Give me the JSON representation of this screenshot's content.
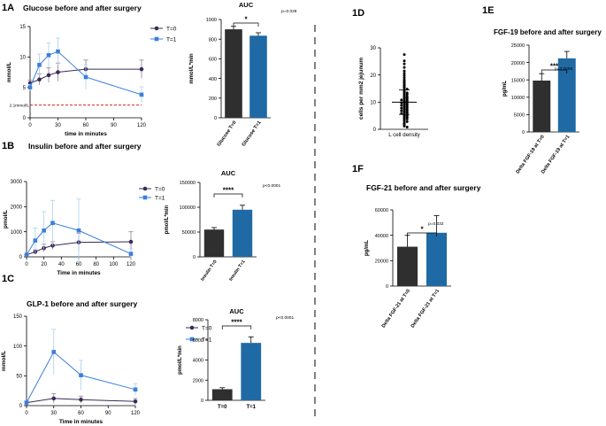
{
  "colors": {
    "t0": "#3b2b57",
    "t1": "#3a7fdc",
    "bar_dark": "#2f2f2f",
    "bar_blue": "#1f6aa5",
    "ref_line": "#e0221a",
    "err_light": "#a9d0f0"
  },
  "panels": {
    "a": {
      "tag": "1A",
      "title": "Glucose before and after surgery"
    },
    "b": {
      "tag": "1B",
      "title": "Insulin before and after surgery"
    },
    "c": {
      "tag": "1C",
      "title": "GLP-1 before and after surgery"
    },
    "d": {
      "tag": "1D"
    },
    "e": {
      "tag": "1E",
      "title": "FGF-19 before and after surgery"
    },
    "f": {
      "tag": "1F",
      "title": "FGF-21 before and after surgery"
    }
  },
  "chart_data": [
    {
      "id": "a-line",
      "type": "line",
      "title": "Glucose before and after surgery",
      "xlabel": "time in minutes",
      "ylabel": "mmol/L",
      "xlim": [
        0,
        120
      ],
      "ylim": [
        0,
        15
      ],
      "xticks": [
        0,
        30,
        60,
        90,
        120
      ],
      "yticks": [
        0,
        5,
        10,
        15
      ],
      "reference_line": {
        "y": 2.1,
        "label": "2.1mmol/L"
      },
      "legend_position": "top-right",
      "series": [
        {
          "name": "T=0",
          "x": [
            0,
            10,
            20,
            30,
            60,
            120
          ],
          "y": [
            5.7,
            6.3,
            7.0,
            7.5,
            8.0,
            8.0
          ],
          "err": [
            0.5,
            0.9,
            1.2,
            1.5,
            1.5,
            1.5
          ]
        },
        {
          "name": "T=1",
          "x": [
            0,
            10,
            20,
            30,
            60,
            120
          ],
          "y": [
            5.0,
            8.7,
            10.3,
            10.9,
            6.7,
            3.8
          ],
          "err": [
            0.5,
            1.8,
            2.0,
            2.2,
            2.0,
            1.3
          ]
        }
      ]
    },
    {
      "id": "a-bar",
      "type": "bar",
      "title": "AUC",
      "ylabel": "mmol/L*min",
      "categories": [
        "Glucose T=0",
        "Glucose T=1"
      ],
      "values": [
        900,
        835
      ],
      "err": [
        30,
        30
      ],
      "ylim": [
        0,
        1000
      ],
      "yticks": [
        0,
        200,
        400,
        600,
        800,
        1000
      ],
      "significance": {
        "stars": "*",
        "p": "p=0.028"
      }
    },
    {
      "id": "b-line",
      "type": "line",
      "title": "Insulin before and after surgery",
      "xlabel": "Time in minutes",
      "ylabel": "pmol/L",
      "xlim": [
        0,
        120
      ],
      "ylim": [
        0,
        3000
      ],
      "xticks": [
        0,
        20,
        40,
        60,
        80,
        100,
        120
      ],
      "yticks": [
        0,
        1000,
        2000,
        3000
      ],
      "legend_position": "top-right",
      "series": [
        {
          "name": "T=0",
          "x": [
            0,
            10,
            20,
            30,
            60,
            120
          ],
          "y": [
            80,
            200,
            350,
            450,
            580,
            600
          ],
          "err": [
            20,
            80,
            150,
            150,
            350,
            400
          ]
        },
        {
          "name": "T=1",
          "x": [
            0,
            10,
            20,
            30,
            60,
            120
          ],
          "y": [
            80,
            650,
            1050,
            1350,
            1050,
            120
          ],
          "err": [
            30,
            500,
            750,
            900,
            1250,
            200
          ]
        }
      ]
    },
    {
      "id": "b-bar",
      "type": "bar",
      "title": "AUC",
      "ylabel": "pmol/L*min",
      "categories": [
        "Insulin T=0",
        "Insulin T=1"
      ],
      "values": [
        55000,
        95000
      ],
      "err": [
        4000,
        9000
      ],
      "ylim": [
        0,
        150000
      ],
      "yticks": [
        0,
        50000,
        100000,
        150000
      ],
      "significance": {
        "stars": "****",
        "p": "p<0.0001"
      }
    },
    {
      "id": "c-line",
      "type": "line",
      "title": "GLP-1 before and after surgery",
      "xlabel": "Time in minutes",
      "ylabel": "mmol/L",
      "xlim": [
        0,
        120
      ],
      "ylim": [
        0,
        150
      ],
      "xticks": [
        0,
        30,
        60,
        90,
        120
      ],
      "yticks": [
        0,
        50,
        100,
        150
      ],
      "legend_position": "top-right",
      "series": [
        {
          "name": "T=0",
          "x": [
            0,
            30,
            60,
            120
          ],
          "y": [
            5,
            12,
            10,
            7
          ],
          "err": [
            2,
            8,
            6,
            5
          ]
        },
        {
          "name": "T=1",
          "x": [
            0,
            30,
            60,
            120
          ],
          "y": [
            5,
            90,
            51,
            27
          ],
          "err": [
            3,
            38,
            25,
            10
          ]
        }
      ]
    },
    {
      "id": "c-bar",
      "type": "bar",
      "title": "AUC",
      "ylabel": "pmol/L*min",
      "categories": [
        "T=0",
        "T=1"
      ],
      "values": [
        1100,
        5700
      ],
      "err": [
        150,
        600
      ],
      "ylim": [
        0,
        8000
      ],
      "yticks": [
        0,
        2000,
        4000,
        6000,
        8000
      ],
      "significance": {
        "stars": "****",
        "p": "p<0.0001"
      }
    },
    {
      "id": "d-scatter",
      "type": "scatter",
      "ylabel": "cells per mm2 jejunum",
      "categories": [
        "L cell density"
      ],
      "ylim": [
        0,
        30
      ],
      "yticks": [
        0,
        10,
        20,
        30
      ],
      "mean": 10,
      "sd": 4.5,
      "values": [
        27.5,
        25.2,
        24.1,
        22.8,
        21.5,
        20.6,
        19.8,
        19.0,
        18.2,
        17.6,
        17.1,
        16.5,
        16.0,
        15.6,
        15.2,
        14.8,
        14.4,
        14.0,
        13.7,
        13.4,
        13.1,
        12.8,
        12.5,
        12.2,
        12.0,
        11.7,
        11.5,
        11.2,
        11.0,
        10.8,
        10.6,
        10.4,
        10.2,
        10.0,
        9.8,
        9.6,
        9.4,
        9.2,
        9.0,
        8.8,
        8.6,
        8.4,
        8.2,
        8.0,
        7.8,
        7.6,
        7.4,
        7.2,
        7.0,
        6.8,
        6.6,
        6.4,
        6.2,
        6.0,
        5.8,
        5.5,
        5.2,
        5.0,
        4.7,
        4.4,
        4.1,
        3.8,
        3.5,
        3.2,
        2.8,
        2.4,
        2.0,
        1.6,
        1.2,
        0.8
      ]
    },
    {
      "id": "e-bar",
      "type": "bar",
      "title": "FGF-19 before and after surgery",
      "ylabel": "pg/mL",
      "categories": [
        "Delta FGF-19 at T=0",
        "Delta FGF-19 at T=1"
      ],
      "values": [
        14800,
        21200
      ],
      "err": [
        2000,
        2000
      ],
      "ylim": [
        0,
        25000
      ],
      "yticks": [
        0,
        5000,
        10000,
        15000,
        20000,
        25000
      ],
      "significance": {
        "stars": "***",
        "p": "p=0.0006"
      }
    },
    {
      "id": "f-bar",
      "type": "bar",
      "title": "FGF-21 before and after surgery",
      "ylabel": "pg/mL",
      "categories": [
        "Delta FGF-21 at T=0",
        "Delta FGF-21 at T=1"
      ],
      "values": [
        31000,
        42000
      ],
      "err": [
        9000,
        13500
      ],
      "ylim": [
        0,
        60000
      ],
      "yticks": [
        0,
        20000,
        40000,
        60000
      ],
      "significance": {
        "stars": "*",
        "p": "p=0.032"
      }
    }
  ]
}
